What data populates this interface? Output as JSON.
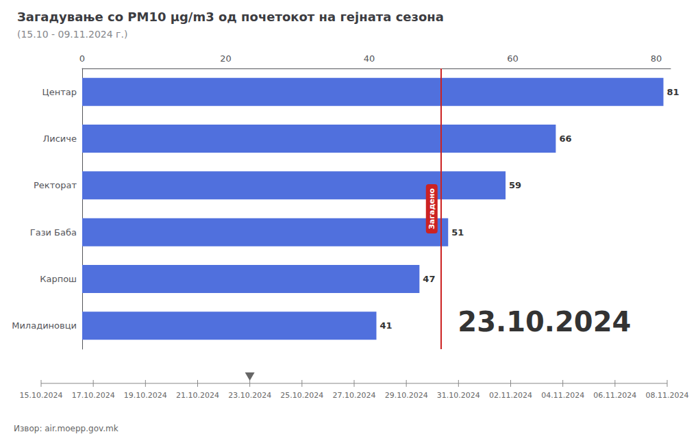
{
  "chart_data": {
    "type": "bar",
    "orientation": "horizontal",
    "title": "Загадување со PM10 μg/m3 од почетокот на гејната сезона",
    "subtitle": "(15.10 - 09.11.2024 г.)",
    "categories": [
      "Миладиновци",
      "Карпош",
      "Гази Баба",
      "Ректорат",
      "Лисиче",
      "Центар"
    ],
    "values": [
      41,
      47,
      51,
      59,
      66,
      81
    ],
    "xlim": [
      0,
      82
    ],
    "xticks": [
      0,
      20,
      40,
      60,
      80
    ],
    "data_labels": true,
    "grid": false,
    "threshold": {
      "value": 50,
      "label": "Загадено",
      "color": "#cc2222"
    },
    "timeline": {
      "dates": [
        "15.10.2024",
        "17.10.2024",
        "19.10.2024",
        "21.10.2024",
        "23.10.2024",
        "25.10.2024",
        "27.10.2024",
        "29.10.2024",
        "31.10.2024",
        "02.11.2024",
        "04.11.2024",
        "06.11.2024",
        "08.11.2024"
      ],
      "current": "23.10.2024"
    },
    "source": "Извор: air.moepp.gov.mk"
  }
}
